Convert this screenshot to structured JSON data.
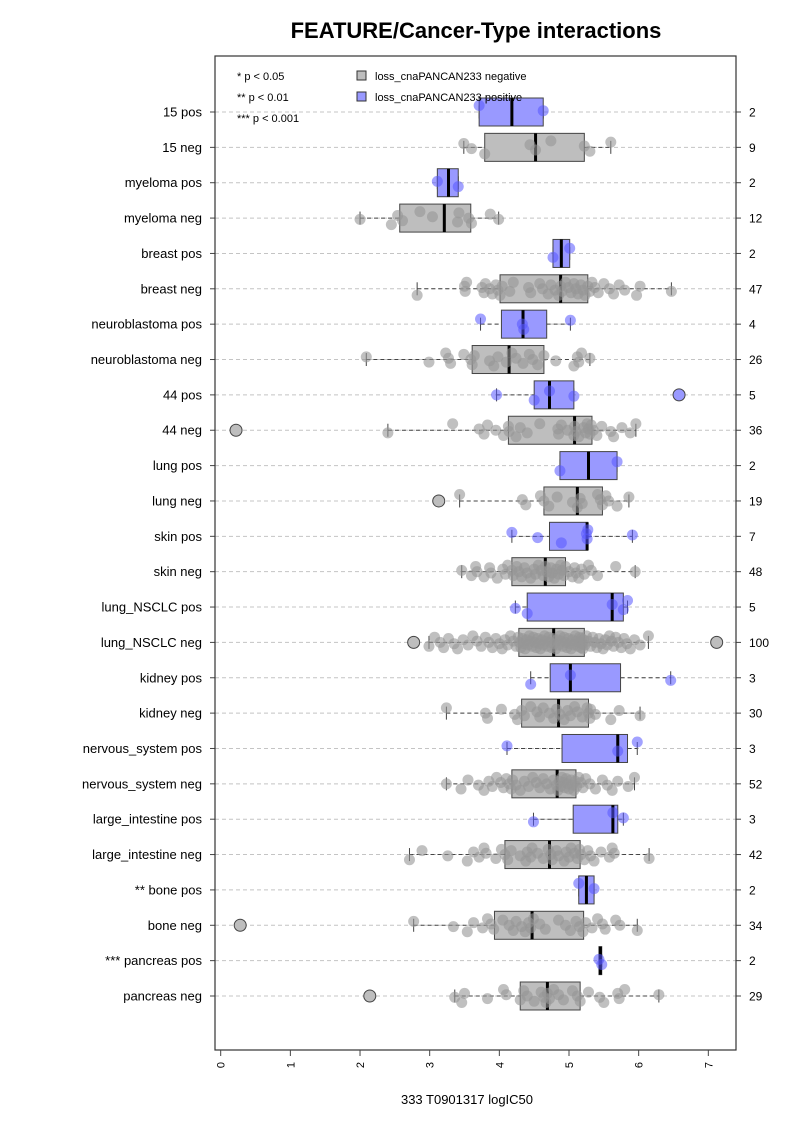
{
  "chart_data": {
    "type": "boxplot",
    "orientation": "horizontal",
    "title": "FEATURE/Cancer-Type interactions",
    "xlabel": "333 T0901317 logIC50",
    "ylabel": "",
    "xlim": [
      -0.06,
      7.4
    ],
    "x_ticks": [
      "0",
      "1",
      "2",
      "3",
      "4",
      "5",
      "6",
      "7"
    ],
    "grid": "dashed horizontal line at each group",
    "legend": {
      "position": "top-left",
      "significance_key": [
        "* p < 0.05",
        "** p < 0.01",
        "*** p < 0.001"
      ],
      "entries": [
        {
          "label": "loss_cnaPANCAN233 negative",
          "color": "#bebebe"
        },
        {
          "label": "loss_cnaPANCAN233 positive",
          "color": "#9999ff"
        }
      ]
    },
    "colors": {
      "negative": "#bebebe",
      "positive": "#9999ff"
    },
    "right_axis": "group sample size (n)",
    "groups": [
      {
        "label": "15 pos",
        "status": "positive",
        "n": "2",
        "stats": [
          3.71,
          3.71,
          4.18,
          4.63,
          4.63
        ],
        "outliers": [],
        "points": [
          3.71,
          4.63
        ]
      },
      {
        "label": "15 neg",
        "status": "negative",
        "n": "9",
        "stats": [
          3.49,
          3.79,
          4.52,
          5.22,
          5.6
        ],
        "outliers": [],
        "points": [
          3.49,
          3.6,
          3.79,
          4.44,
          4.52,
          4.74,
          5.22,
          5.3,
          5.6
        ]
      },
      {
        "label": "myeloma pos",
        "status": "positive",
        "n": "2",
        "stats": [
          3.11,
          3.11,
          3.27,
          3.41,
          3.41
        ],
        "outliers": [],
        "points": [
          3.11,
          3.41
        ]
      },
      {
        "label": "myeloma neg",
        "status": "negative",
        "n": "12",
        "stats": [
          2.0,
          2.57,
          3.21,
          3.59,
          3.99
        ],
        "outliers": [],
        "points": [
          2.0,
          2.45,
          2.54,
          2.61,
          2.86,
          3.04,
          3.4,
          3.42,
          3.56,
          3.6,
          3.87,
          3.99
        ]
      },
      {
        "label": "breast pos",
        "status": "positive",
        "n": "2",
        "stats": [
          4.77,
          4.77,
          4.89,
          5.01,
          5.01
        ],
        "outliers": [],
        "points": [
          4.77,
          5.01
        ]
      },
      {
        "label": "breast neg",
        "status": "negative",
        "n": "47",
        "stats": [
          2.82,
          4.01,
          4.88,
          5.27,
          6.47
        ],
        "outliers": [],
        "points": [
          2.82,
          3.5,
          3.51,
          3.53,
          3.75,
          3.78,
          3.8,
          3.86,
          3.9,
          3.95,
          3.98,
          4.01,
          4.04,
          4.15,
          4.2,
          4.42,
          4.45,
          4.58,
          4.62,
          4.7,
          4.74,
          4.8,
          4.85,
          4.88,
          4.9,
          4.95,
          4.99,
          5.03,
          5.07,
          5.1,
          5.13,
          5.17,
          5.2,
          5.23,
          5.27,
          5.3,
          5.33,
          5.37,
          5.42,
          5.5,
          5.58,
          5.64,
          5.72,
          5.8,
          5.97,
          6.02,
          6.47
        ]
      },
      {
        "label": "neuroblastoma pos",
        "status": "positive",
        "n": "4",
        "stats": [
          3.73,
          4.03,
          4.34,
          4.68,
          5.02
        ],
        "outliers": [],
        "points": [
          3.73,
          4.33,
          4.35,
          5.02
        ]
      },
      {
        "label": "neuroblastoma neg",
        "status": "negative",
        "n": "26",
        "stats": [
          2.09,
          3.61,
          4.14,
          4.64,
          5.3
        ],
        "outliers": [],
        "points": [
          2.09,
          2.99,
          3.23,
          3.27,
          3.3,
          3.49,
          3.59,
          3.61,
          3.64,
          3.86,
          3.92,
          3.98,
          4.1,
          4.18,
          4.24,
          4.34,
          4.43,
          4.48,
          4.55,
          4.64,
          4.81,
          5.07,
          5.12,
          5.14,
          5.18,
          5.3
        ]
      },
      {
        "label": "44 pos",
        "status": "positive",
        "n": "5",
        "stats": [
          3.96,
          4.5,
          4.72,
          5.07,
          5.07
        ],
        "outliers": [
          6.58
        ],
        "points": [
          3.96,
          4.5,
          4.72,
          5.07
        ]
      },
      {
        "label": "44 neg",
        "status": "negative",
        "n": "36",
        "stats": [
          2.4,
          4.13,
          5.08,
          5.33,
          5.96
        ],
        "outliers": [
          0.22
        ],
        "points": [
          2.4,
          3.33,
          3.71,
          3.78,
          3.83,
          3.95,
          4.06,
          4.13,
          4.14,
          4.24,
          4.3,
          4.4,
          4.58,
          4.84,
          4.85,
          4.89,
          4.98,
          5.07,
          5.08,
          5.1,
          5.14,
          5.21,
          5.24,
          5.26,
          5.28,
          5.3,
          5.32,
          5.35,
          5.4,
          5.47,
          5.6,
          5.64,
          5.76,
          5.88,
          5.96
        ]
      },
      {
        "label": "lung pos",
        "status": "positive",
        "n": "2",
        "stats": [
          4.87,
          4.87,
          5.28,
          5.69,
          5.69
        ],
        "outliers": [],
        "points": [
          4.87,
          5.69
        ]
      },
      {
        "label": "lung neg",
        "status": "negative",
        "n": "19",
        "stats": [
          3.43,
          4.64,
          5.12,
          5.48,
          5.86
        ],
        "outliers": [
          3.13
        ],
        "points": [
          3.43,
          4.33,
          4.38,
          4.59,
          4.64,
          4.71,
          4.83,
          5.05,
          5.12,
          5.16,
          5.19,
          5.41,
          5.45,
          5.48,
          5.53,
          5.57,
          5.69,
          5.86
        ]
      },
      {
        "label": "skin pos",
        "status": "positive",
        "n": "7",
        "stats": [
          4.18,
          4.72,
          5.26,
          5.27,
          5.91
        ],
        "outliers": [],
        "points": [
          4.18,
          4.55,
          4.89,
          5.25,
          5.26,
          5.27,
          5.91
        ]
      },
      {
        "label": "skin neg",
        "status": "negative",
        "n": "48",
        "stats": [
          3.46,
          4.18,
          4.66,
          4.95,
          5.95
        ],
        "outliers": [],
        "points": [
          3.46,
          3.6,
          3.66,
          3.68,
          3.78,
          3.86,
          3.88,
          3.97,
          4.05,
          4.09,
          4.12,
          4.18,
          4.2,
          4.25,
          4.28,
          4.32,
          4.36,
          4.4,
          4.45,
          4.5,
          4.52,
          4.56,
          4.6,
          4.63,
          4.66,
          4.68,
          4.71,
          4.74,
          4.76,
          4.79,
          4.82,
          4.85,
          4.88,
          4.9,
          4.93,
          4.95,
          5.0,
          5.05,
          5.08,
          5.1,
          5.14,
          5.18,
          5.22,
          5.28,
          5.32,
          5.41,
          5.67,
          5.95
        ]
      },
      {
        "label": "lung_NSCLC pos",
        "status": "positive",
        "n": "5",
        "stats": [
          4.23,
          4.4,
          5.62,
          5.78,
          5.84
        ],
        "outliers": [],
        "points": [
          4.23,
          4.4,
          5.62,
          5.78,
          5.84
        ]
      },
      {
        "label": "lung_NSCLC neg",
        "status": "negative",
        "n": "100",
        "stats": [
          2.99,
          4.28,
          4.78,
          5.22,
          6.14
        ],
        "outliers": [
          2.77,
          7.12
        ],
        "points": [
          2.99,
          3.07,
          3.15,
          3.2,
          3.27,
          3.35,
          3.4,
          3.48,
          3.55,
          3.62,
          3.68,
          3.74,
          3.8,
          3.85,
          3.9,
          3.95,
          4.0,
          4.04,
          4.08,
          4.12,
          4.16,
          4.2,
          4.24,
          4.27,
          4.29,
          4.31,
          4.33,
          4.35,
          4.37,
          4.39,
          4.41,
          4.43,
          4.45,
          4.47,
          4.49,
          4.51,
          4.53,
          4.55,
          4.57,
          4.59,
          4.61,
          4.63,
          4.65,
          4.67,
          4.69,
          4.71,
          4.73,
          4.75,
          4.77,
          4.79,
          4.81,
          4.83,
          4.85,
          4.87,
          4.89,
          4.91,
          4.93,
          4.95,
          4.97,
          4.99,
          5.01,
          5.03,
          5.05,
          5.07,
          5.09,
          5.11,
          5.13,
          5.15,
          5.16,
          5.17,
          5.18,
          5.19,
          5.2,
          5.21,
          5.23,
          5.25,
          5.28,
          5.31,
          5.34,
          5.37,
          5.4,
          5.43,
          5.46,
          5.49,
          5.52,
          5.55,
          5.58,
          5.61,
          5.64,
          5.67,
          5.71,
          5.75,
          5.79,
          5.83,
          5.88,
          5.94,
          6.02,
          6.14
        ]
      },
      {
        "label": "kidney pos",
        "status": "positive",
        "n": "3",
        "stats": [
          4.45,
          4.73,
          5.02,
          5.74,
          6.46
        ],
        "outliers": [],
        "points": [
          4.45,
          5.02,
          6.46
        ]
      },
      {
        "label": "kidney neg",
        "status": "negative",
        "n": "30",
        "stats": [
          3.24,
          4.32,
          4.85,
          5.28,
          6.02
        ],
        "outliers": [],
        "points": [
          3.24,
          3.8,
          3.83,
          4.03,
          4.22,
          4.26,
          4.32,
          4.36,
          4.45,
          4.54,
          4.58,
          4.63,
          4.72,
          4.78,
          4.82,
          4.87,
          4.93,
          4.98,
          5.02,
          5.08,
          5.12,
          5.19,
          5.26,
          5.28,
          5.3,
          5.31,
          5.38,
          5.6,
          5.72,
          6.02
        ]
      },
      {
        "label": "nervous_system pos",
        "status": "positive",
        "n": "3",
        "stats": [
          4.11,
          4.9,
          5.7,
          5.84,
          5.98
        ],
        "outliers": [],
        "points": [
          4.11,
          5.7,
          5.98
        ]
      },
      {
        "label": "nervous_system neg",
        "status": "negative",
        "n": "52",
        "stats": [
          3.24,
          4.18,
          4.83,
          5.1,
          5.94
        ],
        "outliers": [],
        "points": [
          3.24,
          3.45,
          3.55,
          3.7,
          3.78,
          3.85,
          3.9,
          3.96,
          4.02,
          4.06,
          4.1,
          4.14,
          4.17,
          4.19,
          4.24,
          4.3,
          4.36,
          4.42,
          4.48,
          4.53,
          4.58,
          4.63,
          4.68,
          4.73,
          4.78,
          4.82,
          4.84,
          4.86,
          4.88,
          4.9,
          4.92,
          4.94,
          4.96,
          4.98,
          5.0,
          5.03,
          5.05,
          5.07,
          5.09,
          5.11,
          5.14,
          5.17,
          5.2,
          5.24,
          5.3,
          5.38,
          5.48,
          5.55,
          5.62,
          5.7,
          5.85,
          5.94
        ]
      },
      {
        "label": "large_intestine pos",
        "status": "positive",
        "n": "3",
        "stats": [
          4.49,
          5.06,
          5.63,
          5.7,
          5.78
        ],
        "outliers": [],
        "points": [
          4.49,
          5.63,
          5.78
        ]
      },
      {
        "label": "large_intestine neg",
        "status": "negative",
        "n": "42",
        "stats": [
          2.71,
          4.08,
          4.72,
          5.16,
          6.15
        ],
        "outliers": [],
        "points": [
          2.71,
          2.89,
          3.26,
          3.54,
          3.63,
          3.71,
          3.78,
          3.81,
          3.95,
          4.03,
          4.08,
          4.12,
          4.17,
          4.3,
          4.38,
          4.4,
          4.45,
          4.47,
          4.55,
          4.63,
          4.7,
          4.74,
          4.76,
          4.82,
          4.85,
          4.93,
          4.96,
          5.0,
          5.03,
          5.08,
          5.12,
          5.15,
          5.17,
          5.22,
          5.27,
          5.31,
          5.36,
          5.46,
          5.58,
          5.62,
          5.65,
          6.15
        ]
      },
      {
        "label": "** bone pos",
        "status": "positive",
        "n": "2",
        "stats": [
          5.14,
          5.14,
          5.25,
          5.36,
          5.36
        ],
        "outliers": [],
        "points": [
          5.14,
          5.36
        ]
      },
      {
        "label": "bone neg",
        "status": "negative",
        "n": "34",
        "stats": [
          2.77,
          3.93,
          4.47,
          5.21,
          5.98
        ],
        "outliers": [
          0.28
        ],
        "points": [
          2.77,
          3.34,
          3.54,
          3.63,
          3.76,
          3.83,
          3.88,
          3.92,
          4.05,
          4.14,
          4.2,
          4.24,
          4.32,
          4.37,
          4.42,
          4.45,
          4.49,
          4.58,
          4.66,
          4.85,
          4.95,
          5.02,
          5.1,
          5.15,
          5.2,
          5.24,
          5.33,
          5.41,
          5.48,
          5.52,
          5.67,
          5.73,
          5.98
        ]
      },
      {
        "label": "*** pancreas pos",
        "status": "positive",
        "n": "2",
        "stats": [
          5.43,
          5.43,
          5.45,
          5.47,
          5.47
        ],
        "outliers": [],
        "points": [
          5.43,
          5.47
        ]
      },
      {
        "label": "pancreas neg",
        "status": "negative",
        "n": "29",
        "stats": [
          3.36,
          4.3,
          4.69,
          5.16,
          6.29
        ],
        "outliers": [
          2.14
        ],
        "points": [
          3.36,
          3.46,
          3.5,
          3.83,
          4.06,
          4.1,
          4.3,
          4.35,
          4.4,
          4.5,
          4.6,
          4.64,
          4.67,
          4.69,
          4.72,
          4.78,
          4.85,
          4.92,
          5.05,
          5.12,
          5.16,
          5.28,
          5.44,
          5.5,
          5.7,
          5.72,
          5.8,
          6.29
        ]
      }
    ]
  }
}
